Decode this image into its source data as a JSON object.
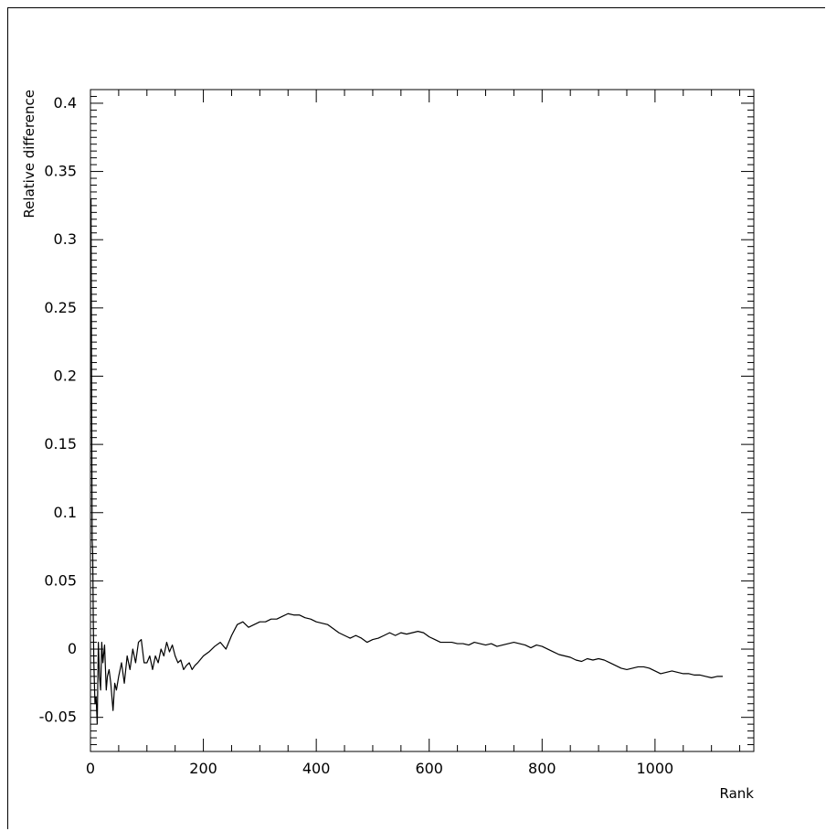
{
  "chart_data": {
    "type": "line",
    "title": "",
    "xlabel": "Rank",
    "ylabel": "Relative difference",
    "xlim": [
      0,
      1175
    ],
    "ylim": [
      -0.075,
      0.41
    ],
    "x_ticks": [
      0,
      200,
      400,
      600,
      800,
      1000
    ],
    "x_tick_labels": [
      "0",
      "200",
      "400",
      "600",
      "800",
      "1000"
    ],
    "y_ticks": [
      -0.05,
      0,
      0.05,
      0.1,
      0.15,
      0.2,
      0.25,
      0.3,
      0.35,
      0.4
    ],
    "y_tick_labels": [
      "-0.05",
      "0",
      "0.05",
      "0.1",
      "0.15",
      "0.2",
      "0.25",
      "0.3",
      "0.35",
      "0.4"
    ],
    "grid": false,
    "legend": "none",
    "series": [
      {
        "color": "#000000",
        "x": [
          1,
          2,
          3,
          4,
          5,
          6,
          8,
          10,
          12,
          14,
          16,
          18,
          20,
          22,
          25,
          28,
          30,
          33,
          36,
          40,
          43,
          46,
          50,
          55,
          60,
          65,
          70,
          75,
          80,
          85,
          90,
          95,
          100,
          105,
          110,
          115,
          120,
          125,
          130,
          135,
          140,
          145,
          150,
          155,
          160,
          165,
          170,
          175,
          180,
          185,
          190,
          200,
          210,
          220,
          230,
          240,
          250,
          260,
          270,
          280,
          290,
          300,
          310,
          320,
          330,
          340,
          350,
          360,
          370,
          380,
          390,
          400,
          410,
          420,
          430,
          440,
          450,
          460,
          470,
          480,
          490,
          500,
          510,
          520,
          530,
          540,
          550,
          560,
          570,
          580,
          590,
          600,
          610,
          620,
          630,
          640,
          650,
          660,
          670,
          680,
          690,
          700,
          710,
          720,
          730,
          740,
          750,
          760,
          770,
          780,
          790,
          800,
          810,
          820,
          830,
          840,
          850,
          860,
          870,
          880,
          890,
          900,
          910,
          920,
          930,
          940,
          950,
          960,
          970,
          980,
          990,
          1000,
          1010,
          1020,
          1030,
          1040,
          1050,
          1060,
          1070,
          1080,
          1090,
          1100,
          1110,
          1120
        ],
        "y": [
          0.33,
          0.2,
          0.08,
          0.07,
          0.02,
          -0.01,
          -0.04,
          -0.035,
          -0.055,
          0.005,
          -0.02,
          -0.03,
          0.005,
          -0.01,
          0.003,
          -0.03,
          -0.02,
          -0.015,
          -0.025,
          -0.045,
          -0.025,
          -0.03,
          -0.02,
          -0.01,
          -0.025,
          -0.005,
          -0.015,
          0.0,
          -0.01,
          0.005,
          0.007,
          -0.01,
          -0.01,
          -0.005,
          -0.015,
          -0.005,
          -0.01,
          0.0,
          -0.005,
          0.005,
          -0.002,
          0.003,
          -0.005,
          -0.01,
          -0.008,
          -0.015,
          -0.012,
          -0.01,
          -0.015,
          -0.012,
          -0.01,
          -0.005,
          -0.002,
          0.002,
          0.005,
          0.0,
          0.01,
          0.018,
          0.02,
          0.016,
          0.018,
          0.02,
          0.02,
          0.022,
          0.022,
          0.024,
          0.026,
          0.025,
          0.025,
          0.023,
          0.022,
          0.02,
          0.019,
          0.018,
          0.015,
          0.012,
          0.01,
          0.008,
          0.01,
          0.008,
          0.005,
          0.007,
          0.008,
          0.01,
          0.012,
          0.01,
          0.012,
          0.011,
          0.012,
          0.013,
          0.012,
          0.009,
          0.007,
          0.005,
          0.005,
          0.005,
          0.004,
          0.004,
          0.003,
          0.005,
          0.004,
          0.003,
          0.004,
          0.002,
          0.003,
          0.004,
          0.005,
          0.004,
          0.003,
          0.001,
          0.003,
          0.002,
          0.0,
          -0.002,
          -0.004,
          -0.005,
          -0.006,
          -0.008,
          -0.009,
          -0.007,
          -0.008,
          -0.007,
          -0.008,
          -0.01,
          -0.012,
          -0.014,
          -0.015,
          -0.014,
          -0.013,
          -0.013,
          -0.014,
          -0.016,
          -0.018,
          -0.017,
          -0.016,
          -0.017,
          -0.018,
          -0.018,
          -0.019,
          -0.019,
          -0.02,
          -0.021,
          -0.02,
          -0.02
        ]
      }
    ]
  }
}
